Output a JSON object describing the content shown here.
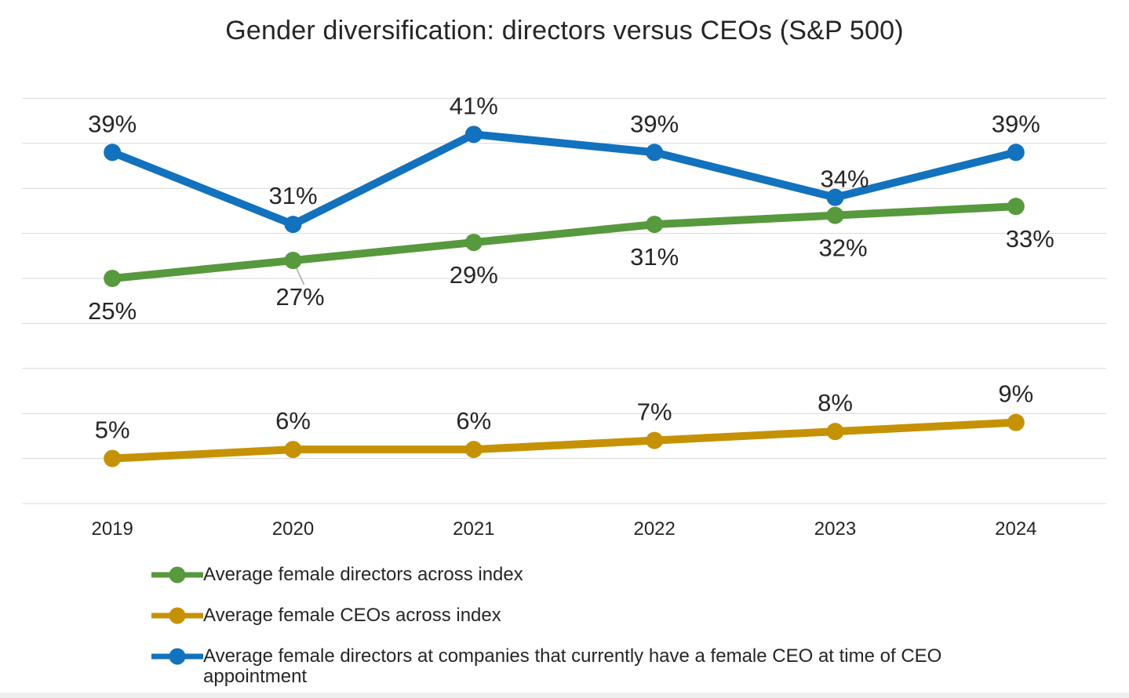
{
  "chart_data": {
    "type": "line",
    "title": "Gender diversification: directors versus CEOs (S&P 500)",
    "categories": [
      "2019",
      "2020",
      "2021",
      "2022",
      "2023",
      "2024"
    ],
    "series": [
      {
        "name": "Average female directors across index",
        "color": "#57993d",
        "values": [
          25,
          27,
          29,
          31,
          32,
          33
        ],
        "label_position": "below"
      },
      {
        "name": "Average female CEOs across index",
        "color": "#c69205",
        "values": [
          5,
          6,
          6,
          7,
          8,
          9
        ],
        "label_position": "above"
      },
      {
        "name": "Average female directors at companies that currently have a female CEO at time of CEO appointment",
        "color": "#1272be",
        "values": [
          39,
          31,
          41,
          39,
          34,
          39
        ],
        "label_position": "above"
      }
    ],
    "value_suffix": "%",
    "ylim": [
      0,
      45
    ],
    "gridline_step": 5,
    "grid": "horizontal-only",
    "y_axis_labels_visible": false,
    "legend_position": "bottom-left",
    "colors": {
      "gridline": "#d9d9d9",
      "label_text": "#262626",
      "leader_line": "#a6a6a6"
    }
  }
}
